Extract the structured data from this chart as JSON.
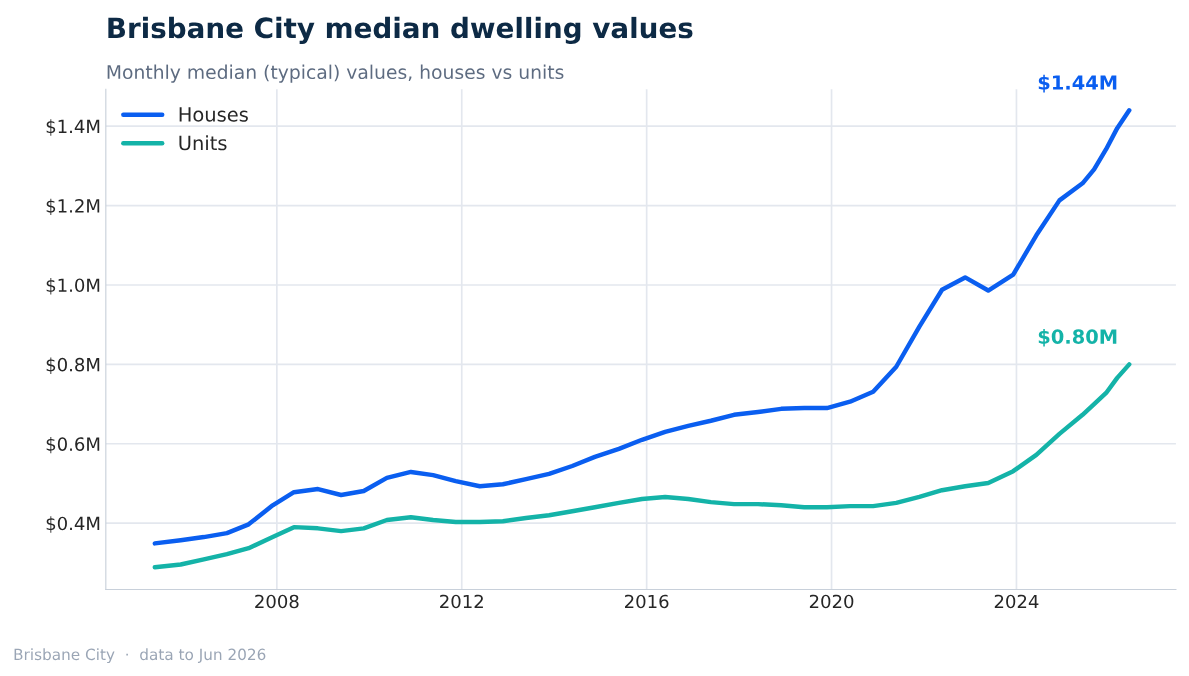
{
  "chart_data": {
    "type": "line",
    "title": "Brisbane City median dwelling values",
    "subtitle": "Monthly median (typical) values, houses vs units",
    "x": [
      2005.36,
      2005.92,
      2006.42,
      2006.92,
      2007.39,
      2007.91,
      2008.37,
      2008.89,
      2009.39,
      2009.88,
      2010.38,
      2010.9,
      2011.38,
      2011.87,
      2012.39,
      2012.89,
      2013.39,
      2013.89,
      2014.39,
      2014.88,
      2015.4,
      2015.9,
      2016.4,
      2016.9,
      2017.39,
      2017.89,
      2018.41,
      2018.91,
      2019.41,
      2019.9,
      2020.4,
      2020.9,
      2021.4,
      2021.9,
      2022.39,
      2022.89,
      2023.39,
      2023.93,
      2024.43,
      2024.93,
      2025.43,
      2025.68,
      2025.94,
      2026.18,
      2026.44
    ],
    "series": [
      {
        "name": "Houses",
        "color": "#0a5ef0",
        "values": [
          0.349,
          0.357,
          0.365,
          0.375,
          0.397,
          0.445,
          0.478,
          0.486,
          0.471,
          0.481,
          0.514,
          0.529,
          0.521,
          0.506,
          0.493,
          0.498,
          0.511,
          0.524,
          0.544,
          0.567,
          0.587,
          0.61,
          0.63,
          0.645,
          0.658,
          0.673,
          0.68,
          0.688,
          0.69,
          0.69,
          0.706,
          0.731,
          0.794,
          0.895,
          0.988,
          1.019,
          0.986,
          1.026,
          1.125,
          1.213,
          1.256,
          1.291,
          1.342,
          1.395,
          1.44
        ]
      },
      {
        "name": "Units",
        "color": "#14b3a8",
        "values": [
          0.289,
          0.296,
          0.309,
          0.322,
          0.337,
          0.365,
          0.39,
          0.387,
          0.38,
          0.387,
          0.408,
          0.415,
          0.408,
          0.403,
          0.403,
          0.405,
          0.413,
          0.42,
          0.43,
          0.44,
          0.451,
          0.461,
          0.466,
          0.461,
          0.453,
          0.448,
          0.448,
          0.445,
          0.44,
          0.44,
          0.443,
          0.443,
          0.451,
          0.466,
          0.483,
          0.493,
          0.501,
          0.531,
          0.572,
          0.625,
          0.673,
          0.7,
          0.728,
          0.766,
          0.8
        ]
      }
    ],
    "annotations": [
      {
        "text": "$1.44M",
        "x": 2026.44,
        "y": 1.44
      },
      {
        "text": "$0.80M",
        "x": 2026.44,
        "y": 0.8
      },
      "Brisbane City  ·  data to Jun 2026"
    ],
    "xlim": [
      2004.3,
      2027.45
    ],
    "xticks": [
      2008,
      2012,
      2016,
      2020,
      2024
    ],
    "ylim": [
      0.233,
      1.493
    ],
    "yticks": [
      {
        "value": 0.4,
        "label": "$0.4M"
      },
      {
        "value": 0.6,
        "label": "$0.6M"
      },
      {
        "value": 0.8,
        "label": "$0.8M"
      },
      {
        "value": 1.0,
        "label": "$1.0M"
      },
      {
        "value": 1.2,
        "label": "$1.2M"
      },
      {
        "value": 1.4,
        "label": "$1.4M"
      }
    ],
    "grid": true,
    "legend": "top left",
    "marker": "none",
    "line_style": "solid"
  }
}
